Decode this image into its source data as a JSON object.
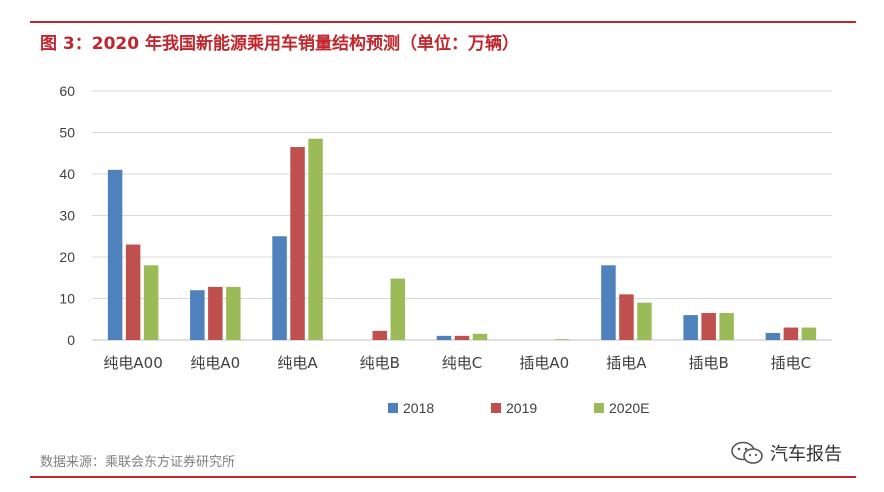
{
  "header": {
    "title": "图 3：2020 年我国新能源乘用车销量结构预测（单位：万辆）"
  },
  "footer": {
    "source": "数据来源：乘联会东方证券研究所"
  },
  "watermark": {
    "text": "汽车报告",
    "icon": "wechat-icon"
  },
  "chart_data": {
    "type": "bar",
    "title": "",
    "xlabel": "",
    "ylabel": "",
    "ylim": [
      0,
      60
    ],
    "yticks": [
      0,
      10,
      20,
      30,
      40,
      50,
      60
    ],
    "grid": true,
    "legend_position": "bottom",
    "categories": [
      "纯电A00",
      "纯电A0",
      "纯电A",
      "纯电B",
      "纯电C",
      "插电A0",
      "插电A",
      "插电B",
      "插电C"
    ],
    "series": [
      {
        "name": "2018",
        "color": "#4f81bd",
        "values": [
          41,
          12,
          25,
          0,
          1,
          0,
          18,
          6,
          1.7
        ]
      },
      {
        "name": "2019",
        "color": "#c0504d",
        "values": [
          23,
          12.8,
          46.5,
          2.2,
          1,
          0,
          11,
          6.5,
          3
        ]
      },
      {
        "name": "2020E",
        "color": "#9bbb59",
        "values": [
          18,
          12.8,
          48.5,
          14.8,
          1.5,
          0.2,
          9,
          6.5,
          3
        ]
      }
    ]
  }
}
